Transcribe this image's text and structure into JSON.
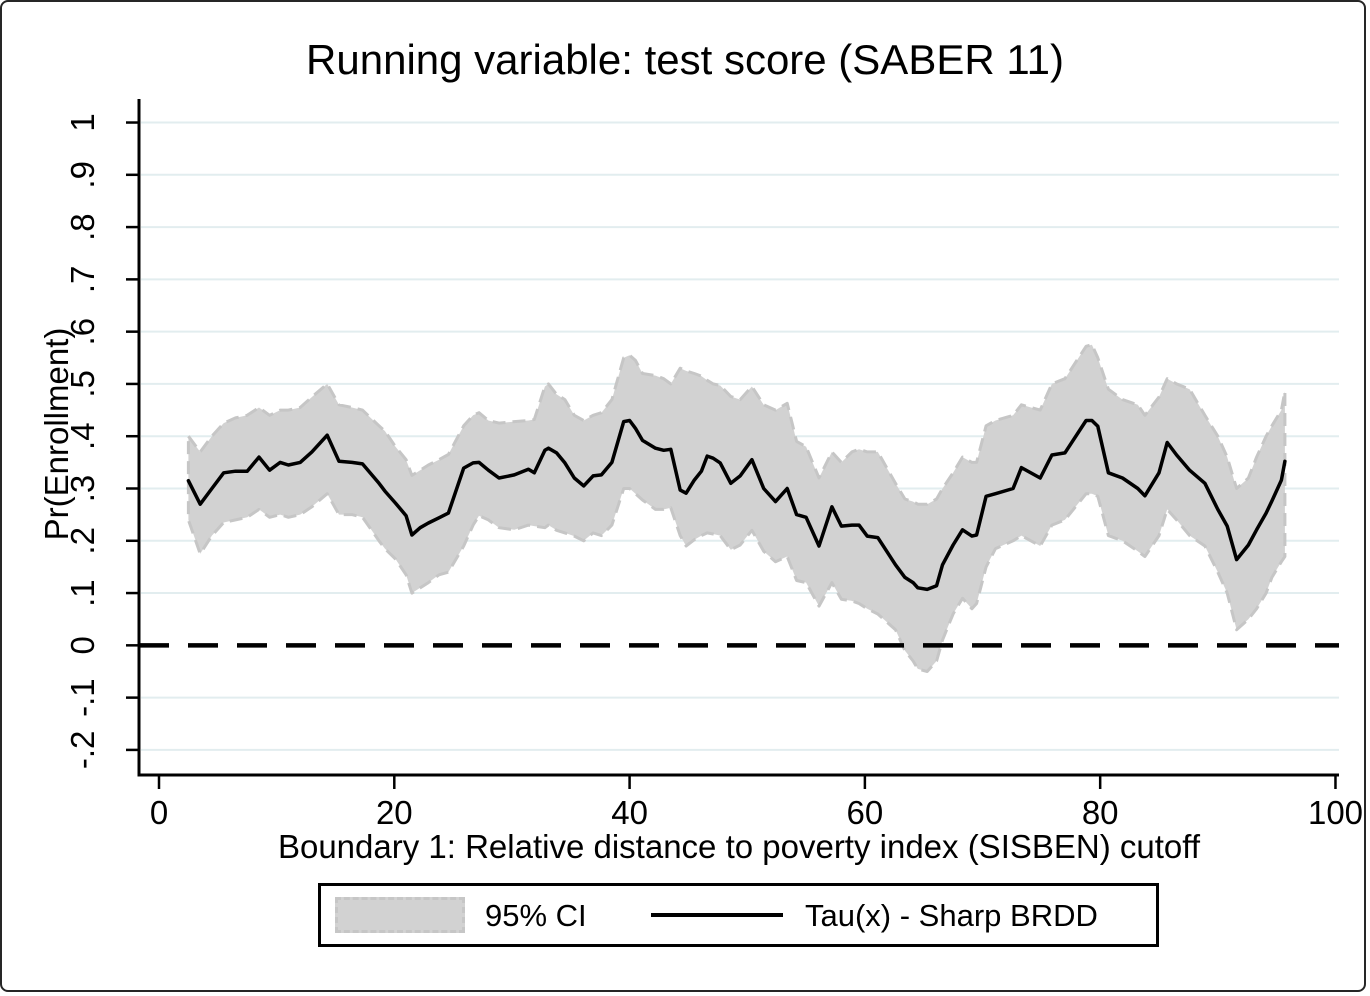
{
  "chart_data": {
    "type": "line",
    "title": "Running variable: test score (SABER 11)",
    "xlabel": "Boundary 1: Relative distance to poverty index (SISBEN) cutoff",
    "ylabel": "Pr(Enrollment)",
    "xlim": [
      -1.7,
      100.3
    ],
    "ylim": [
      -0.248,
      1.045
    ],
    "xticks": [
      0,
      20,
      40,
      60,
      80,
      100
    ],
    "xtick_labels": [
      "0",
      "20",
      "40",
      "60",
      "80",
      "100"
    ],
    "yticks": [
      -0.2,
      -0.1,
      0,
      0.1,
      0.2,
      0.3,
      0.4,
      0.5,
      0.6,
      0.7,
      0.8,
      0.9,
      1
    ],
    "ytick_labels": [
      "-.2",
      "-.1",
      "0",
      ".1",
      ".2",
      ".3",
      ".4",
      ".5",
      ".6",
      ".7",
      ".8",
      ".9",
      "1"
    ],
    "grid": {
      "axis": "y",
      "color": "#e2edef",
      "on": true
    },
    "reference_line": {
      "y": 0,
      "style": "dashed",
      "color": "#000000"
    },
    "colors": {
      "ci_fill": "#d2d2d2",
      "ci_edge": "#c6c6c6",
      "tau_line": "#000000",
      "axis": "#000000"
    },
    "legend": {
      "position": "bottom-center",
      "entries": [
        {
          "label": "95% CI",
          "marker": "area"
        },
        {
          "label": "Tau(x) - Sharp BRDD",
          "marker": "line"
        }
      ]
    },
    "x": [
      2.5,
      3.5,
      4.5,
      5.5,
      6.5,
      7.5,
      8.5,
      9.4,
      10.3,
      11.0,
      12.0,
      13.0,
      14.3,
      15.3,
      16.4,
      17.3,
      18.7,
      19.2,
      20.1,
      21.0,
      21.5,
      22.2,
      22.9,
      23.8,
      24.6,
      25.9,
      26.7,
      27.2,
      28.0,
      28.9,
      30.2,
      31.4,
      31.9,
      32.8,
      33.1,
      33.8,
      34.5,
      35.3,
      36.1,
      36.9,
      37.6,
      38.5,
      39.5,
      40.0,
      40.5,
      41.1,
      42.2,
      42.9,
      43.5,
      44.3,
      44.8,
      45.5,
      46.1,
      46.6,
      47.1,
      47.7,
      48.6,
      49.4,
      50.4,
      51.4,
      52.4,
      53.4,
      54.2,
      55.0,
      56.1,
      57.2,
      58.0,
      58.9,
      59.5,
      60.2,
      61.1,
      62.6,
      63.4,
      64.1,
      64.5,
      65.3,
      66.1,
      66.6,
      67.5,
      68.3,
      69.1,
      69.5,
      70.3,
      71.1,
      72.6,
      73.3,
      74.9,
      75.9,
      77.0,
      78.8,
      79.3,
      79.8,
      80.7,
      81.9,
      83.2,
      83.8,
      85.0,
      85.7,
      86.5,
      87.6,
      88.9,
      90.0,
      90.8,
      91.6,
      92.6,
      93.3,
      94.1,
      94.6,
      95.4,
      95.7
    ],
    "series": [
      {
        "name": "Tau(x) - Sharp BRDD",
        "role": "line",
        "values": [
          0.315,
          0.27,
          0.3,
          0.33,
          0.333,
          0.333,
          0.36,
          0.335,
          0.35,
          0.345,
          0.35,
          0.37,
          0.402,
          0.352,
          0.35,
          0.347,
          0.31,
          0.295,
          0.272,
          0.248,
          0.211,
          0.225,
          0.234,
          0.244,
          0.253,
          0.339,
          0.349,
          0.35,
          0.335,
          0.32,
          0.326,
          0.337,
          0.33,
          0.373,
          0.377,
          0.368,
          0.349,
          0.32,
          0.305,
          0.324,
          0.326,
          0.35,
          0.428,
          0.43,
          0.415,
          0.392,
          0.377,
          0.373,
          0.375,
          0.297,
          0.291,
          0.316,
          0.333,
          0.362,
          0.358,
          0.349,
          0.31,
          0.324,
          0.355,
          0.3,
          0.275,
          0.3,
          0.25,
          0.245,
          0.19,
          0.265,
          0.228,
          0.23,
          0.23,
          0.209,
          0.206,
          0.154,
          0.13,
          0.12,
          0.11,
          0.107,
          0.114,
          0.154,
          0.192,
          0.221,
          0.209,
          0.211,
          0.285,
          0.29,
          0.3,
          0.34,
          0.32,
          0.364,
          0.368,
          0.43,
          0.43,
          0.419,
          0.33,
          0.32,
          0.3,
          0.286,
          0.33,
          0.388,
          0.364,
          0.335,
          0.31,
          0.26,
          0.228,
          0.164,
          0.192,
          0.221,
          0.253,
          0.276,
          0.316,
          0.352
        ]
      },
      {
        "name": "95% CI lower",
        "role": "band-lower",
        "values": [
          0.24,
          0.175,
          0.21,
          0.235,
          0.24,
          0.245,
          0.26,
          0.245,
          0.25,
          0.245,
          0.25,
          0.265,
          0.29,
          0.25,
          0.25,
          0.245,
          0.2,
          0.185,
          0.165,
          0.135,
          0.1,
          0.11,
          0.12,
          0.135,
          0.14,
          0.19,
          0.23,
          0.248,
          0.24,
          0.225,
          0.221,
          0.23,
          0.228,
          0.225,
          0.23,
          0.22,
          0.215,
          0.209,
          0.2,
          0.215,
          0.21,
          0.23,
          0.3,
          0.3,
          0.29,
          0.278,
          0.26,
          0.26,
          0.263,
          0.21,
          0.19,
          0.202,
          0.21,
          0.215,
          0.213,
          0.21,
          0.183,
          0.192,
          0.22,
          0.18,
          0.16,
          0.17,
          0.124,
          0.12,
          0.075,
          0.12,
          0.088,
          0.085,
          0.08,
          0.07,
          0.06,
          0.03,
          -0.01,
          -0.03,
          -0.045,
          -0.05,
          -0.03,
          0.01,
          0.06,
          0.09,
          0.07,
          0.08,
          0.15,
          0.185,
          0.2,
          0.21,
          0.19,
          0.23,
          0.24,
          0.29,
          0.29,
          0.285,
          0.21,
          0.2,
          0.18,
          0.17,
          0.21,
          0.26,
          0.24,
          0.21,
          0.19,
          0.14,
          0.1,
          0.03,
          0.05,
          0.07,
          0.1,
          0.13,
          0.16,
          0.17
        ]
      },
      {
        "name": "95% CI upper",
        "role": "band-upper",
        "values": [
          0.4,
          0.37,
          0.4,
          0.425,
          0.435,
          0.44,
          0.455,
          0.44,
          0.45,
          0.45,
          0.455,
          0.475,
          0.5,
          0.46,
          0.455,
          0.45,
          0.42,
          0.41,
          0.38,
          0.355,
          0.325,
          0.335,
          0.345,
          0.355,
          0.365,
          0.42,
          0.44,
          0.445,
          0.43,
          0.425,
          0.428,
          0.43,
          0.432,
          0.495,
          0.5,
          0.48,
          0.47,
          0.44,
          0.43,
          0.44,
          0.445,
          0.47,
          0.55,
          0.555,
          0.545,
          0.52,
          0.516,
          0.51,
          0.5,
          0.53,
          0.525,
          0.52,
          0.515,
          0.507,
          0.5,
          0.497,
          0.476,
          0.47,
          0.495,
          0.46,
          0.45,
          0.463,
          0.39,
          0.38,
          0.32,
          0.37,
          0.35,
          0.37,
          0.375,
          0.37,
          0.37,
          0.31,
          0.28,
          0.275,
          0.27,
          0.27,
          0.28,
          0.3,
          0.33,
          0.36,
          0.35,
          0.35,
          0.42,
          0.43,
          0.44,
          0.46,
          0.45,
          0.5,
          0.51,
          0.572,
          0.575,
          0.55,
          0.49,
          0.47,
          0.46,
          0.44,
          0.475,
          0.51,
          0.5,
          0.49,
          0.44,
          0.4,
          0.36,
          0.3,
          0.32,
          0.36,
          0.4,
          0.42,
          0.45,
          0.486
        ]
      }
    ]
  }
}
